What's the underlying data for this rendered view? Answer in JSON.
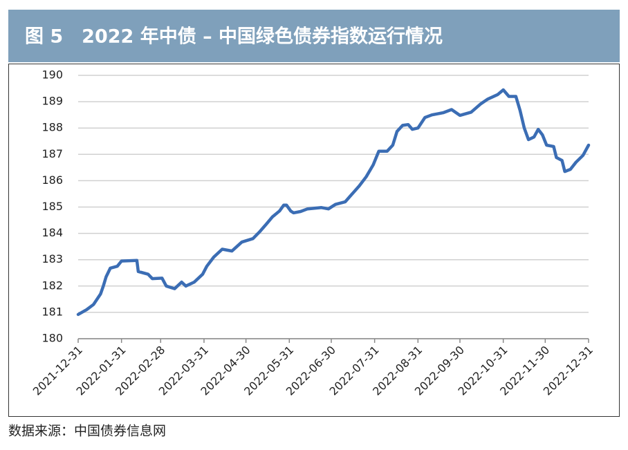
{
  "chart_data": {
    "type": "line",
    "title": "图 5　2022 年中债 – 中国绿色债券指数运行情况",
    "source": "数据来源：中国债券信息网",
    "color": "#3b6db4",
    "grid": true,
    "x": [
      "2021-12-31",
      "2022-01-06",
      "2022-01-11",
      "2022-01-16",
      "2022-01-18",
      "2022-01-20",
      "2022-01-23",
      "2022-01-28",
      "2022-01-31",
      "2022-02-11",
      "2022-02-12",
      "2022-02-19",
      "2022-02-22",
      "2022-03-01",
      "2022-03-04",
      "2022-03-10",
      "2022-03-15",
      "2022-03-18",
      "2022-03-24",
      "2022-03-30",
      "2022-04-02",
      "2022-04-07",
      "2022-04-13",
      "2022-04-20",
      "2022-04-27",
      "2022-05-05",
      "2022-05-10",
      "2022-05-15",
      "2022-05-19",
      "2022-05-24",
      "2022-05-27",
      "2022-05-29",
      "2022-06-01",
      "2022-06-03",
      "2022-06-08",
      "2022-06-13",
      "2022-06-23",
      "2022-06-28",
      "2022-07-03",
      "2022-07-10",
      "2022-07-15",
      "2022-07-20",
      "2022-07-25",
      "2022-07-30",
      "2022-08-03",
      "2022-08-09",
      "2022-08-13",
      "2022-08-16",
      "2022-08-20",
      "2022-08-24",
      "2022-08-27",
      "2022-08-31",
      "2022-09-05",
      "2022-09-10",
      "2022-09-18",
      "2022-09-24",
      "2022-09-30",
      "2022-10-08",
      "2022-10-15",
      "2022-10-20",
      "2022-10-27",
      "2022-10-31",
      "2022-11-04",
      "2022-11-09",
      "2022-11-12",
      "2022-11-15",
      "2022-11-18",
      "2022-11-22",
      "2022-11-25",
      "2022-11-28",
      "2022-12-01",
      "2022-12-06",
      "2022-12-08",
      "2022-12-12",
      "2022-12-14",
      "2022-12-18",
      "2022-12-22",
      "2022-12-27",
      "2022-12-31"
    ],
    "values": [
      180.92,
      181.1,
      181.3,
      181.7,
      182.0,
      182.35,
      182.68,
      182.75,
      182.95,
      182.97,
      182.55,
      182.45,
      182.28,
      182.3,
      182.0,
      181.9,
      182.15,
      182.0,
      182.15,
      182.45,
      182.75,
      183.1,
      183.4,
      183.33,
      183.67,
      183.8,
      184.07,
      184.38,
      184.63,
      184.85,
      185.07,
      185.07,
      184.85,
      184.78,
      184.83,
      184.93,
      184.98,
      184.93,
      185.1,
      185.2,
      185.5,
      185.8,
      186.15,
      186.6,
      187.12,
      187.12,
      187.35,
      187.87,
      188.1,
      188.13,
      187.95,
      188.0,
      188.4,
      188.5,
      188.58,
      188.7,
      188.48,
      188.6,
      188.92,
      189.1,
      189.27,
      189.45,
      189.2,
      189.2,
      188.67,
      188.0,
      187.56,
      187.66,
      187.95,
      187.74,
      187.35,
      187.3,
      186.88,
      186.77,
      186.35,
      186.43,
      186.7,
      186.96,
      187.35
    ],
    "xlim": [
      "2021-12-31",
      "2022-12-31"
    ],
    "xticks": [
      "2021-12-31",
      "2022-01-31",
      "2022-02-28",
      "2022-03-31",
      "2022-04-30",
      "2022-05-31",
      "2022-06-30",
      "2022-07-31",
      "2022-08-31",
      "2022-09-30",
      "2022-10-31",
      "2022-11-30",
      "2022-12-31"
    ],
    "ylim": [
      180,
      190
    ],
    "yticks": [
      180,
      181,
      182,
      183,
      184,
      185,
      186,
      187,
      188,
      189,
      190
    ]
  }
}
